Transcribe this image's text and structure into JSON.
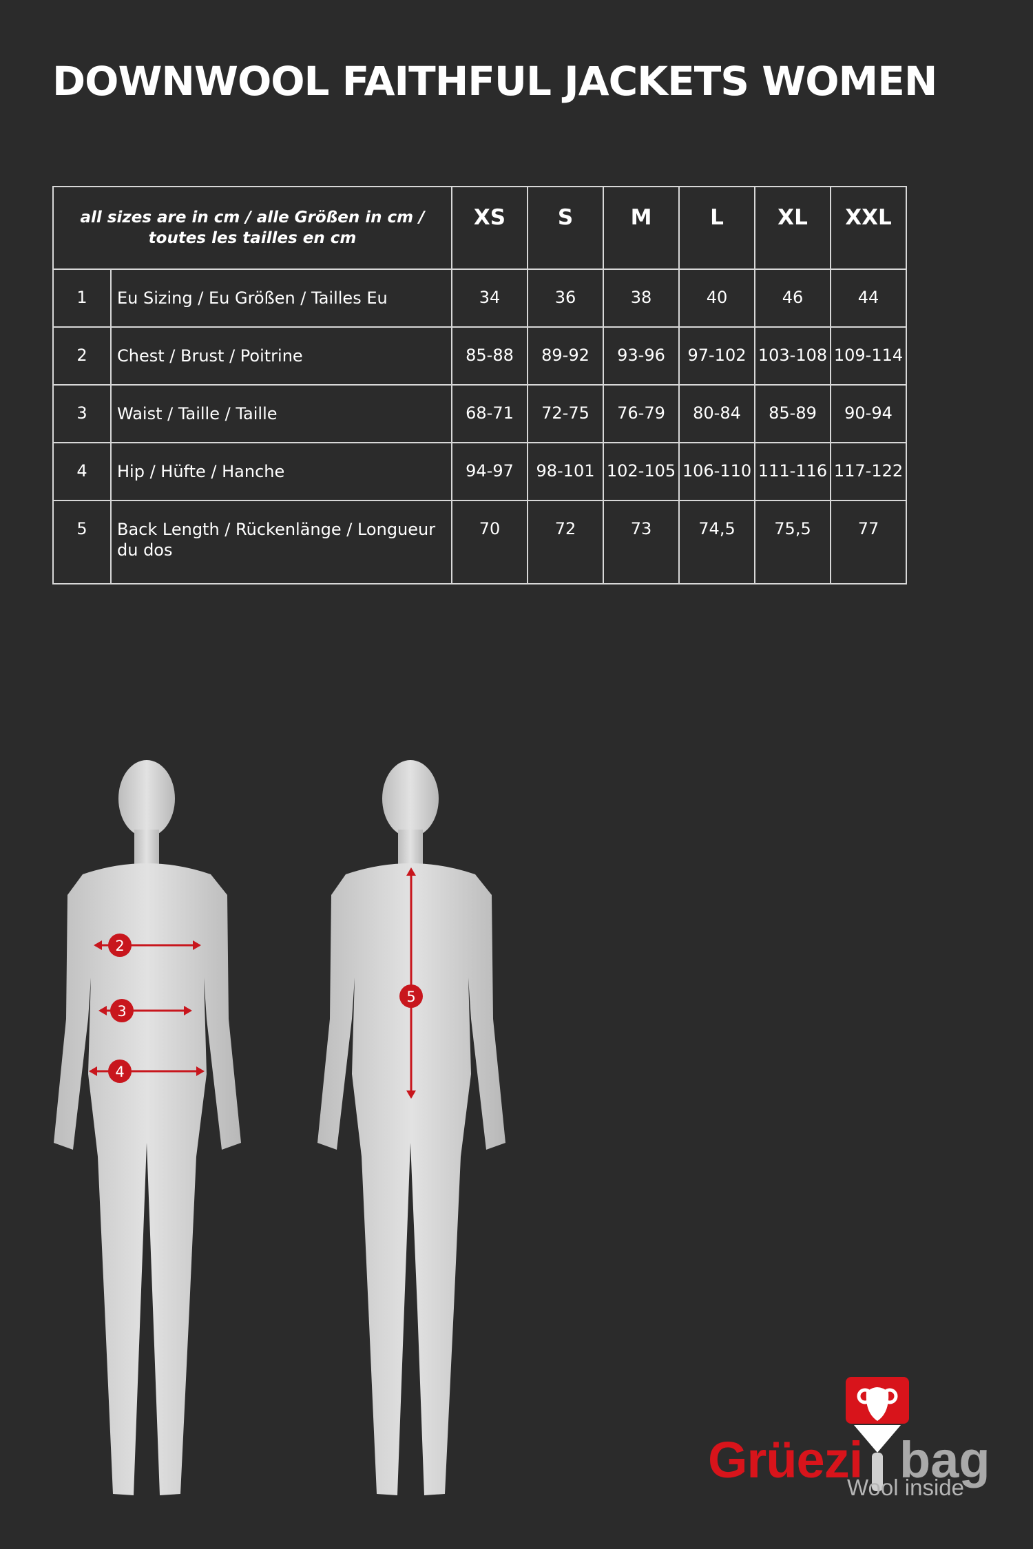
{
  "title": "DOWNWOOL FAITHFUL JACKETS WOMEN",
  "table": {
    "note_line1": "all sizes are in cm / alle Größen in cm /",
    "note_line2": "toutes les tailles en cm",
    "sizes": [
      "XS",
      "S",
      "M",
      "L",
      "XL",
      "XXL"
    ],
    "rows": [
      {
        "num": "1",
        "label": "Eu Sizing / Eu Größen / Tailles Eu",
        "values": [
          "34",
          "36",
          "38",
          "40",
          "46",
          "44"
        ]
      },
      {
        "num": "2",
        "label": "Chest / Brust / Poitrine",
        "values": [
          "85-88",
          "89-92",
          "93-96",
          "97-102",
          "103-108",
          "109-114"
        ]
      },
      {
        "num": "3",
        "label": "Waist / Taille / Taille",
        "values": [
          "68-71",
          "72-75",
          "76-79",
          "80-84",
          "85-89",
          "90-94"
        ]
      },
      {
        "num": "4",
        "label": "Hip / Hüfte / Hanche",
        "values": [
          "94-97",
          "98-101",
          "102-105",
          "106-110",
          "111-116",
          "117-122"
        ]
      },
      {
        "num": "5",
        "label": "Back Length / Rückenlänge / Longueur du dos",
        "values": [
          "70",
          "72",
          "73",
          "74,5",
          "75,5",
          "77"
        ]
      }
    ]
  },
  "figures": {
    "markers": {
      "chest": "2",
      "waist": "3",
      "hip": "4",
      "back": "5"
    },
    "marker_color": "#c8161d",
    "mannequin_color": "#d4d4d4"
  },
  "logo": {
    "part1": "Grüezi",
    "part2": "bag",
    "tagline": "Wool inside",
    "red": "#d8141b",
    "gray": "#a9a9a9"
  }
}
